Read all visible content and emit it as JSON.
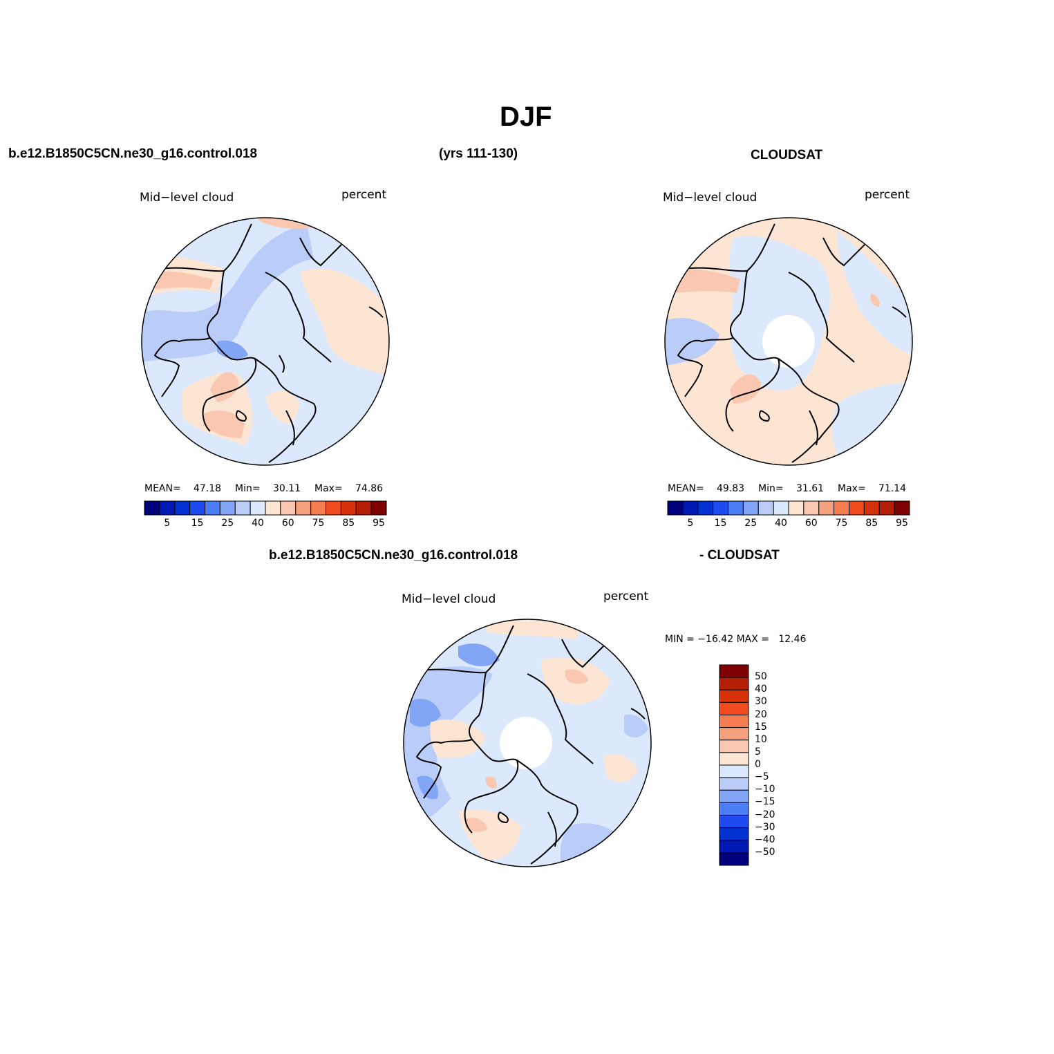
{
  "title": "DJF",
  "header": {
    "case_name": "b.e12.B1850C5CN.ne30_g16.control.018",
    "years": "(yrs 111-130)",
    "obs_name": "CLOUDSAT",
    "diff_case": "b.e12.B1850C5CN.ne30_g16.control.018",
    "diff_obs": "- CLOUDSAT"
  },
  "panels": {
    "model": {
      "variable": "Mid−level cloud",
      "units": "percent",
      "mean_label": "MEAN=",
      "mean": "47.18",
      "min_label": "Min=",
      "min": "30.11",
      "max_label": "Max=",
      "max": "74.86"
    },
    "obs": {
      "variable": "Mid−level cloud",
      "units": "percent",
      "mean_label": "MEAN=",
      "mean": "49.83",
      "min_label": "Min=",
      "min": "31.61",
      "max_label": "Max=",
      "max": "71.14"
    },
    "diff": {
      "variable": "Mid−level cloud",
      "units": "percent",
      "minmax": "MIN = −16.42 MAX =   12.46"
    }
  },
  "colorbar_main": {
    "colors": [
      "#00007f",
      "#0019b4",
      "#0032d2",
      "#1e4bf0",
      "#4b7df5",
      "#82a5f5",
      "#b9cdf8",
      "#dce9fc",
      "#fde5d4",
      "#fac8b0",
      "#f5a07e",
      "#f57d50",
      "#f04b1e",
      "#d7320a",
      "#b41e05",
      "#7f0000"
    ],
    "labels": [
      "5",
      "15",
      "25",
      "40",
      "60",
      "75",
      "85",
      "95"
    ]
  },
  "colorbar_diff": {
    "colors": [
      "#7f0000",
      "#b41e05",
      "#d7320a",
      "#f04b1e",
      "#f57d50",
      "#f5a07e",
      "#fac8b0",
      "#fde5d4",
      "#dce9fc",
      "#b9cdf8",
      "#82a5f5",
      "#4b7df5",
      "#1e4bf0",
      "#0032d2",
      "#0019b4",
      "#00007f"
    ],
    "labels": [
      "50",
      "40",
      "30",
      "20",
      "15",
      "10",
      "5",
      "0",
      "−5",
      "−10",
      "−15",
      "−20",
      "−30",
      "−40",
      "−50"
    ]
  }
}
